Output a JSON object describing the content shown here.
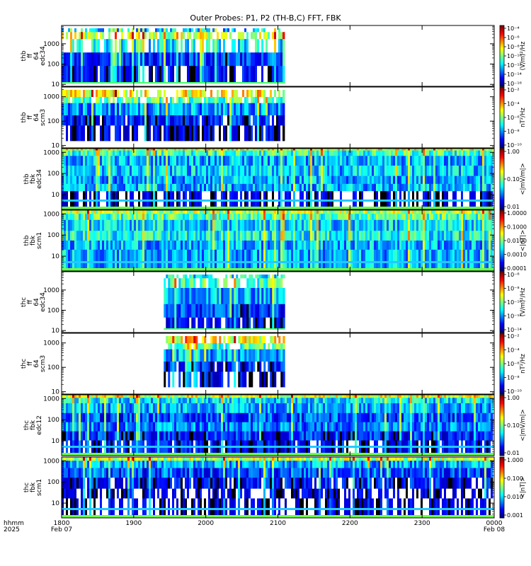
{
  "title": "Outer Probes: P1, P2 (TH-B,C) FFT, FBK",
  "x_axis": {
    "ticks": [
      "1800",
      "1900",
      "2000",
      "2100",
      "2200",
      "2300",
      "0000"
    ],
    "row1_left": "hhmm",
    "row2_left": "2025",
    "date_left": "Feb 07",
    "date_right": "Feb 08"
  },
  "chart_data": [
    {
      "type": "heatmap",
      "panel": 1,
      "ylabel": [
        "thb",
        "ff",
        "64",
        "edc34"
      ],
      "yticks": [
        "10",
        "100",
        "1000"
      ],
      "ylog": true,
      "ylim": [
        8,
        8000
      ],
      "data_x_range": [
        "1800",
        "2106"
      ],
      "colorbar": {
        "label": "(V/m)²/Hz",
        "ticks": [
          "10⁻⁴",
          "10⁻⁶",
          "10⁻⁸",
          "10⁻¹⁰",
          "10⁻¹²",
          "10⁻¹⁴",
          "10⁻¹⁶"
        ]
      }
    },
    {
      "type": "heatmap",
      "panel": 2,
      "ylabel": [
        "thb",
        "ff",
        "64",
        "scm3"
      ],
      "yticks": [
        "10",
        "100",
        "1000"
      ],
      "ylog": true,
      "ylim": [
        8,
        2500
      ],
      "data_x_range": [
        "1800",
        "2106"
      ],
      "colorbar": {
        "label": "nT²/Hz",
        "ticks": [
          "10⁻²",
          "10⁻⁴",
          "10⁻⁶",
          "10⁻⁸",
          "10⁻¹⁰"
        ]
      }
    },
    {
      "type": "heatmap",
      "panel": 3,
      "ylabel": [
        "thb",
        "fbk",
        "edc34"
      ],
      "yticks": [
        "10",
        "100",
        "1000"
      ],
      "ylog": true,
      "ylim": [
        2,
        1500
      ],
      "data_x_range": [
        "1800",
        "0000"
      ],
      "colorbar": {
        "label": "<|mV/m|>",
        "ticks": [
          "1.00",
          "0.10",
          "0.01"
        ]
      }
    },
    {
      "type": "heatmap",
      "panel": 4,
      "ylabel": [
        "thb",
        "fbk",
        "scm1"
      ],
      "yticks": [
        "10",
        "100",
        "1000"
      ],
      "ylog": true,
      "ylim": [
        2,
        1500
      ],
      "data_x_range": [
        "1800",
        "0000"
      ],
      "colorbar": {
        "label": "<|nT|>",
        "ticks": [
          "1.0000",
          "0.1000",
          "0.0100",
          "0.0010",
          "0.0001"
        ]
      }
    },
    {
      "type": "heatmap",
      "panel": 5,
      "ylabel": [
        "thc",
        "ff",
        "64",
        "edc34"
      ],
      "yticks": [
        "10",
        "100",
        "1000"
      ],
      "ylog": true,
      "ylim": [
        8,
        8000
      ],
      "data_x_range": [
        "1925",
        "2106"
      ],
      "colorbar": {
        "label": "(V/m)²/Hz",
        "ticks": [
          "10⁻⁶",
          "10⁻⁸",
          "10⁻¹⁰",
          "10⁻¹²",
          "10⁻¹⁴"
        ]
      }
    },
    {
      "type": "heatmap",
      "panel": 6,
      "ylabel": [
        "thc",
        "ff",
        "64",
        "scm3"
      ],
      "yticks": [
        "10",
        "100",
        "1000"
      ],
      "ylog": true,
      "ylim": [
        8,
        2500
      ],
      "data_x_range": [
        "1925",
        "2106"
      ],
      "colorbar": {
        "label": "nT²/Hz",
        "ticks": [
          "10⁻²",
          "10⁻⁴",
          "10⁻⁶",
          "10⁻⁸",
          "10⁻¹⁰"
        ]
      }
    },
    {
      "type": "heatmap",
      "panel": 7,
      "ylabel": [
        "thc",
        "fbk",
        "edc12"
      ],
      "yticks": [
        "10",
        "100",
        "1000"
      ],
      "ylog": true,
      "ylim": [
        2,
        1500
      ],
      "data_x_range": [
        "1800",
        "0000"
      ],
      "colorbar": {
        "label": "<|mV/m|>",
        "ticks": [
          "1.00",
          "0.10",
          "0.01"
        ]
      }
    },
    {
      "type": "heatmap",
      "panel": 8,
      "ylabel": [
        "thc",
        "fbk",
        "scm1"
      ],
      "yticks": [
        "10",
        "100",
        "1000"
      ],
      "ylog": true,
      "ylim": [
        2,
        1500
      ],
      "data_x_range": [
        "1800",
        "0000"
      ],
      "colorbar": {
        "label": "<|nT|>",
        "ticks": [
          "1.000",
          "0.100",
          "0.010",
          "0.001"
        ]
      }
    }
  ]
}
